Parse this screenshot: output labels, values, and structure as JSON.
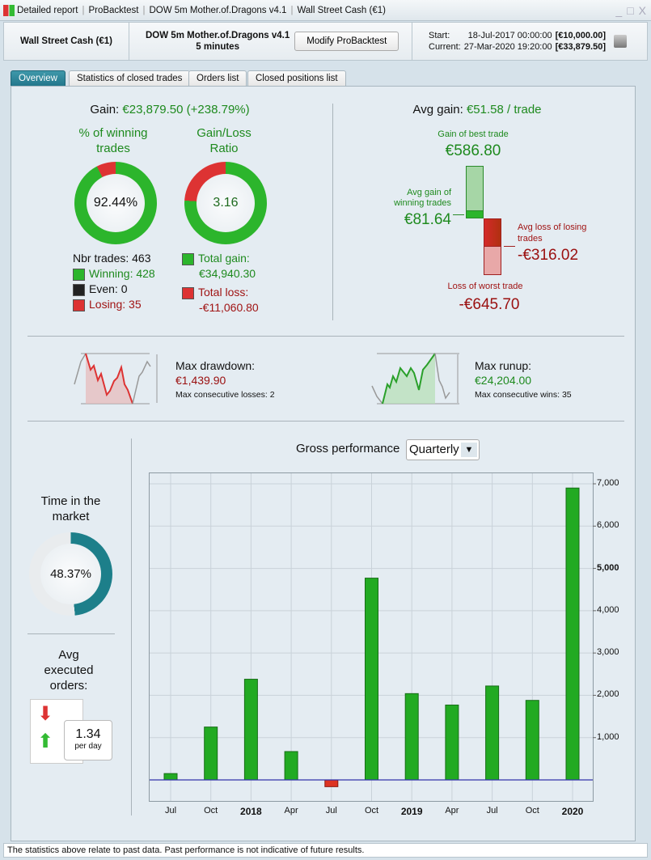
{
  "titlebar": {
    "crumbs": [
      "Detailed report",
      "ProBacktest",
      "DOW 5m Mother.of.Dragons v4.1",
      "Wall Street Cash (€1)"
    ],
    "controls": [
      "_",
      "□",
      "X"
    ]
  },
  "header": {
    "instrument": "Wall Street Cash (€1)",
    "strategy": "DOW 5m Mother.of.Dragons v4.1",
    "timeframe": "5 minutes",
    "modify_label": "Modify ProBacktest",
    "start_label": "Start:",
    "start_date": "18-Jul-2017 00:00:00",
    "start_capital": "[€10,000.00]",
    "current_label": "Current:",
    "current_date": "27-Mar-2020 19:20:00",
    "current_capital": "[€33,879.50]"
  },
  "tabs": [
    "Overview",
    "Statistics of closed trades",
    "Orders list",
    "Closed positions list"
  ],
  "gain": {
    "label": "Gain:",
    "value": "€23,879.50 (+238.79%)"
  },
  "winning": {
    "title": "% of winning trades",
    "value": "92.44%",
    "fraction": 0.9244
  },
  "ratio": {
    "title": "Gain/Loss Ratio",
    "value": "3.16",
    "loss_fraction": 0.2404
  },
  "trades": {
    "nbr": "Nbr trades: 463",
    "winning": "Winning: 428",
    "even": "Even: 0",
    "losing": "Losing: 35",
    "total_gain_label": "Total gain:",
    "total_gain": "€34,940.30",
    "total_loss_label": "Total loss:",
    "total_loss": "-€11,060.80"
  },
  "avg": {
    "label": "Avg gain:",
    "value": "€51.58 / trade",
    "best_label": "Gain of best trade",
    "best": "€586.80",
    "avg_win_label": "Avg gain of winning trades",
    "avg_win": "€81.64",
    "avg_loss_label": "Avg loss of losing trades",
    "avg_loss": "-€316.02",
    "worst_label": "Loss of worst trade",
    "worst": "-€645.70"
  },
  "drawdown": {
    "label": "Max drawdown:",
    "value": "€1,439.90",
    "sub": "Max consecutive losses: 2"
  },
  "runup": {
    "label": "Max runup:",
    "value": "€24,204.00",
    "sub": "Max consecutive wins: 35"
  },
  "time_market": {
    "title": "Time in the market",
    "value": "48.37%",
    "fraction": 0.4837
  },
  "orders": {
    "title": "Avg executed orders:",
    "value": "1.34",
    "unit": "per day"
  },
  "perf": {
    "label": "Gross performance",
    "select": "Quarterly"
  },
  "chart_data": {
    "type": "bar",
    "title": "Gross performance",
    "categories": [
      "Jul",
      "Oct",
      "2018",
      "Apr",
      "Jul",
      "Oct",
      "2019",
      "Apr",
      "Jul",
      "Oct",
      "2020"
    ],
    "bold": [
      false,
      false,
      true,
      false,
      false,
      false,
      true,
      false,
      false,
      false,
      true
    ],
    "values": [
      150,
      1250,
      2380,
      670,
      -160,
      4770,
      2040,
      1770,
      2220,
      1880,
      6900
    ],
    "yticks": [
      "1,000",
      "2,000",
      "3,000",
      "4,000",
      "5,000",
      "6,000",
      "7,000"
    ],
    "ylim": [
      -500,
      7300
    ],
    "colors": {
      "pos": "#22aa22",
      "neg": "#dd3322",
      "zero": "#3333aa"
    }
  },
  "footer": "The statistics above relate to past data. Past performance is not indicative of future results."
}
